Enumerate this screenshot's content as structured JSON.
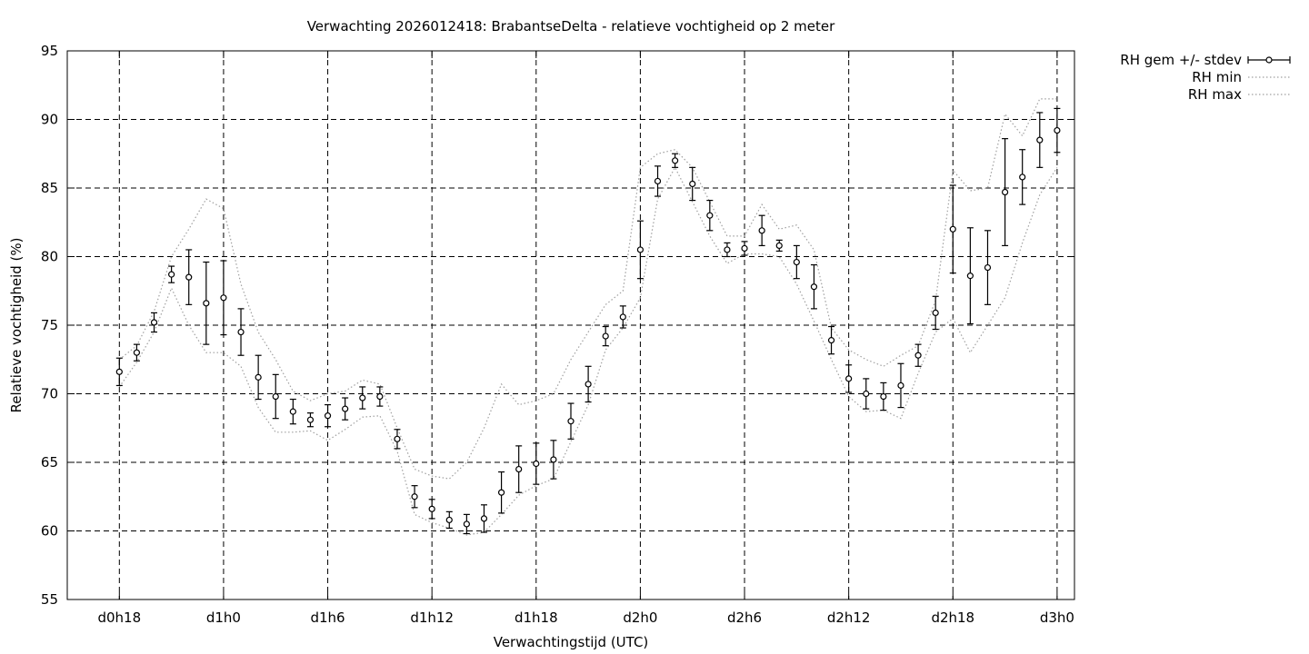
{
  "chart_data": {
    "type": "line",
    "title": "Verwachting 2026012418: BrabantseDelta - relatieve vochtigheid op 2 meter",
    "xlabel": "Verwachtingstijd (UTC)",
    "ylabel": "Relatieve vochtigheid (%)",
    "xlim_hours": [
      15,
      73
    ],
    "ylim": [
      55,
      95
    ],
    "x_ticks": [
      {
        "hour": 18,
        "label": "d0h18"
      },
      {
        "hour": 24,
        "label": "d1h0"
      },
      {
        "hour": 30,
        "label": "d1h6"
      },
      {
        "hour": 36,
        "label": "d1h12"
      },
      {
        "hour": 42,
        "label": "d1h18"
      },
      {
        "hour": 48,
        "label": "d2h0"
      },
      {
        "hour": 54,
        "label": "d2h6"
      },
      {
        "hour": 60,
        "label": "d2h12"
      },
      {
        "hour": 66,
        "label": "d2h18"
      },
      {
        "hour": 72,
        "label": "d3h0"
      }
    ],
    "y_ticks": [
      55,
      60,
      65,
      70,
      75,
      80,
      85,
      90,
      95
    ],
    "grid": true,
    "legend_position": "outside-top-right",
    "series": [
      {
        "name": "RH gem +/- stdev",
        "style": "errorbars",
        "x": [
          18,
          19,
          20,
          21,
          22,
          23,
          24,
          25,
          26,
          27,
          28,
          29,
          30,
          31,
          32,
          33,
          34,
          35,
          36,
          37,
          38,
          39,
          40,
          41,
          42,
          43,
          44,
          45,
          46,
          47,
          48,
          49,
          50,
          51,
          52,
          53,
          54,
          55,
          56,
          57,
          58,
          59,
          60,
          61,
          62,
          63,
          64,
          65,
          66,
          67,
          68,
          69,
          70,
          71,
          72
        ],
        "mean": [
          71.6,
          73.0,
          75.2,
          78.7,
          78.5,
          76.6,
          77.0,
          74.5,
          71.2,
          69.8,
          68.7,
          68.1,
          68.4,
          68.9,
          69.7,
          69.8,
          66.7,
          62.5,
          61.6,
          60.8,
          60.5,
          60.9,
          62.8,
          64.5,
          64.9,
          65.2,
          68.0,
          70.7,
          74.2,
          75.6,
          80.5,
          85.5,
          87.0,
          85.3,
          83.0,
          80.5,
          80.6,
          81.9,
          80.8,
          79.6,
          77.8,
          73.9,
          71.1,
          70.0,
          69.8,
          70.6,
          72.8,
          75.9,
          82.0,
          78.6,
          79.2,
          84.7,
          85.8,
          88.5,
          89.2
        ],
        "stdev": [
          1.0,
          0.6,
          0.7,
          0.6,
          2.0,
          3.0,
          2.7,
          1.7,
          1.6,
          1.6,
          0.9,
          0.5,
          0.8,
          0.8,
          0.8,
          0.7,
          0.7,
          0.8,
          0.7,
          0.6,
          0.7,
          1.0,
          1.5,
          1.7,
          1.5,
          1.4,
          1.3,
          1.3,
          0.7,
          0.8,
          2.1,
          1.1,
          0.5,
          1.2,
          1.1,
          0.5,
          0.5,
          1.1,
          0.4,
          1.2,
          1.6,
          1.0,
          1.0,
          1.1,
          1.0,
          1.6,
          0.8,
          1.2,
          3.2,
          3.5,
          2.7,
          3.9,
          2.0,
          2.0,
          1.6
        ]
      },
      {
        "name": "RH min",
        "style": "dotted",
        "x": [
          18,
          19,
          20,
          21,
          22,
          23,
          24,
          25,
          26,
          27,
          28,
          29,
          30,
          31,
          32,
          33,
          34,
          35,
          36,
          37,
          38,
          39,
          40,
          41,
          42,
          43,
          44,
          45,
          46,
          47,
          48,
          49,
          50,
          51,
          52,
          53,
          54,
          55,
          56,
          57,
          58,
          59,
          60,
          61,
          62,
          63,
          64,
          65,
          66,
          67,
          68,
          69,
          70,
          71,
          72
        ],
        "values": [
          70.5,
          72.3,
          74.5,
          77.7,
          75.0,
          73.0,
          73.0,
          72.0,
          69.0,
          67.2,
          67.2,
          67.3,
          66.6,
          67.4,
          68.3,
          68.4,
          65.8,
          61.2,
          60.6,
          60.2,
          59.7,
          59.9,
          61.2,
          62.6,
          63.3,
          63.8,
          66.5,
          69.2,
          73.2,
          74.8,
          77.0,
          84.2,
          86.5,
          84.0,
          81.5,
          79.5,
          80.2,
          80.2,
          80.0,
          78.0,
          75.3,
          72.5,
          69.8,
          68.7,
          68.8,
          68.2,
          71.5,
          74.5,
          75.5,
          73.0,
          75.0,
          77.0,
          81.0,
          84.5,
          86.5
        ]
      },
      {
        "name": "RH max",
        "style": "dotted",
        "x": [
          18,
          19,
          20,
          21,
          22,
          23,
          24,
          25,
          26,
          27,
          28,
          29,
          30,
          31,
          32,
          33,
          34,
          35,
          36,
          37,
          38,
          39,
          40,
          41,
          42,
          43,
          44,
          45,
          46,
          47,
          48,
          49,
          50,
          51,
          52,
          53,
          54,
          55,
          56,
          57,
          58,
          59,
          60,
          61,
          62,
          63,
          64,
          65,
          66,
          67,
          68,
          69,
          70,
          71,
          72
        ],
        "values": [
          72.5,
          73.5,
          76.0,
          80.0,
          82.0,
          84.2,
          83.5,
          78.0,
          74.5,
          72.5,
          70.2,
          69.5,
          70.0,
          70.2,
          71.0,
          70.7,
          67.5,
          64.5,
          64.0,
          63.8,
          65.0,
          67.5,
          70.7,
          69.2,
          69.5,
          70.0,
          72.5,
          74.5,
          76.5,
          77.5,
          86.5,
          87.5,
          87.8,
          86.5,
          84.0,
          81.5,
          81.5,
          83.8,
          82.0,
          82.3,
          80.5,
          74.8,
          73.2,
          72.5,
          72.0,
          72.8,
          73.5,
          76.8,
          86.3,
          84.8,
          85.0,
          90.4,
          88.8,
          91.5,
          91.5
        ]
      }
    ]
  },
  "colors": {
    "background": "#ffffff",
    "axis": "#000000",
    "grid": "#000000",
    "series_mean": "#000000",
    "series_min": "#a0a0a0",
    "series_max": "#a0a0a0"
  }
}
